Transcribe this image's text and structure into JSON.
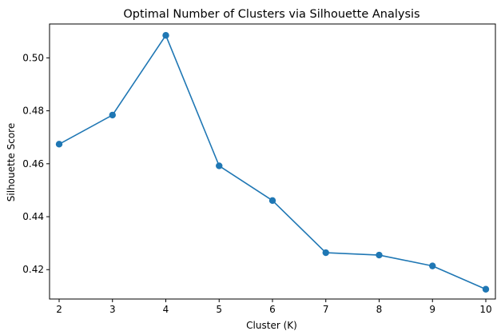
{
  "chart_data": {
    "type": "line",
    "title": "Optimal Number of Clusters via Silhouette Analysis",
    "xlabel": "Cluster (K)",
    "ylabel": "Silhouette Score",
    "xlim": [
      1.82,
      10.18
    ],
    "ylim": [
      0.4089,
      0.5128
    ],
    "xticks": [
      2,
      3,
      4,
      5,
      6,
      7,
      8,
      9,
      10
    ],
    "yticks": [
      0.42,
      0.44,
      0.46,
      0.48,
      0.5
    ],
    "ytick_labels": [
      "0.42",
      "0.44",
      "0.46",
      "0.48",
      "0.50"
    ],
    "grid": false,
    "series": [
      {
        "color": "#1f77b4",
        "marker": "circle",
        "x": [
          2,
          3,
          4,
          5,
          6,
          7,
          8,
          9,
          10
        ],
        "y": [
          0.4674,
          0.4784,
          0.5085,
          0.4592,
          0.4461,
          0.4264,
          0.4255,
          0.4214,
          0.4126
        ]
      }
    ]
  }
}
